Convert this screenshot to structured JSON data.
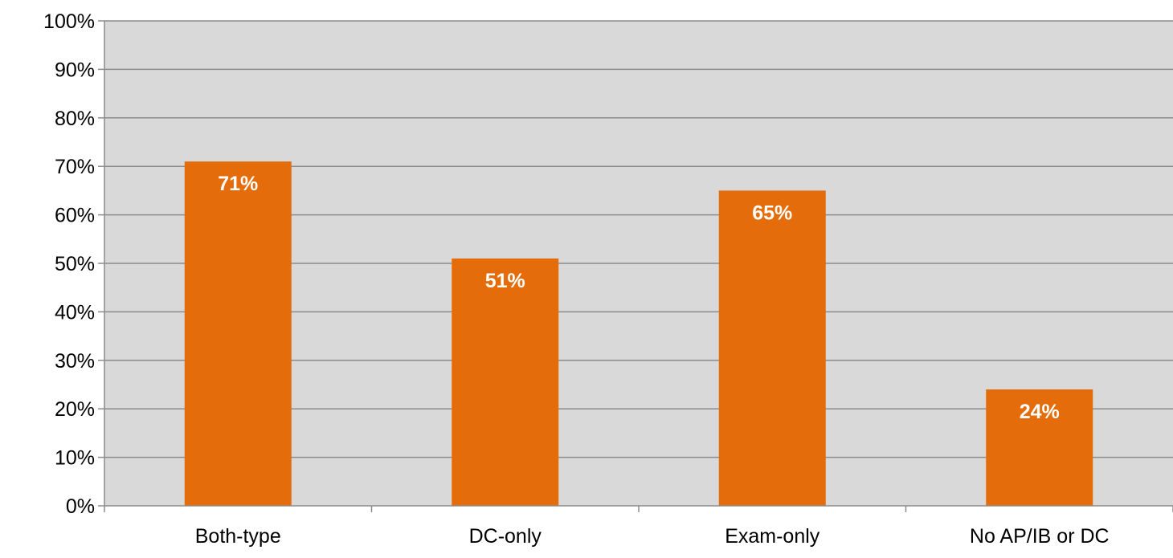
{
  "chart_data": {
    "type": "bar",
    "categories": [
      "Both-type",
      "DC-only",
      "Exam-only",
      "No AP/IB or DC"
    ],
    "values": [
      71,
      51,
      65,
      24
    ],
    "data_labels": [
      "71%",
      "51%",
      "65%",
      "24%"
    ],
    "ylim": [
      0,
      100
    ],
    "y_ticks": [
      0,
      10,
      20,
      30,
      40,
      50,
      60,
      70,
      80,
      90,
      100
    ],
    "y_tick_labels": [
      "0%",
      "10%",
      "20%",
      "30%",
      "40%",
      "50%",
      "60%",
      "70%",
      "80%",
      "90%",
      "100%"
    ],
    "title": "",
    "xlabel": "",
    "ylabel": "",
    "grid": true,
    "legend": "none",
    "colors": {
      "bar": "#e46c0a",
      "plot_background": "#d9d9d9",
      "gridline": "#8c8c8c",
      "axis": "#8c8c8c",
      "data_label": "#ffffff"
    }
  }
}
